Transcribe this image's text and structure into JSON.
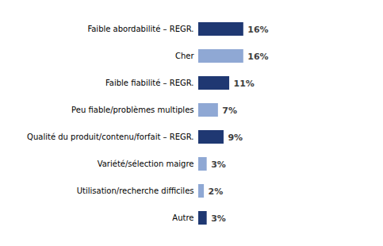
{
  "chart_data": {
    "type": "bar",
    "orientation": "horizontal",
    "categories": [
      "Faible abordabilité – REGR.",
      "Cher",
      "Faible fiabilité – REGR.",
      "Peu fiable/problèmes multiples",
      "Qualité du produit/contenu/forfait – REGR.",
      "Variété/sélection maigre",
      "Utilisation/recherche difficiles",
      "Autre"
    ],
    "values": [
      16,
      16,
      11,
      7,
      9,
      3,
      2,
      3
    ],
    "value_labels": [
      "16%",
      "16%",
      "11%",
      "7%",
      "9%",
      "3%",
      "2%",
      "3%"
    ],
    "colors": [
      "#1f3872",
      "#8fa8d4",
      "#1f3872",
      "#8fa8d4",
      "#1f3872",
      "#8fa8d4",
      "#8fa8d4",
      "#1f3872"
    ],
    "xlim": [
      0,
      60
    ],
    "data_labels": true,
    "tick_labels": "y"
  }
}
